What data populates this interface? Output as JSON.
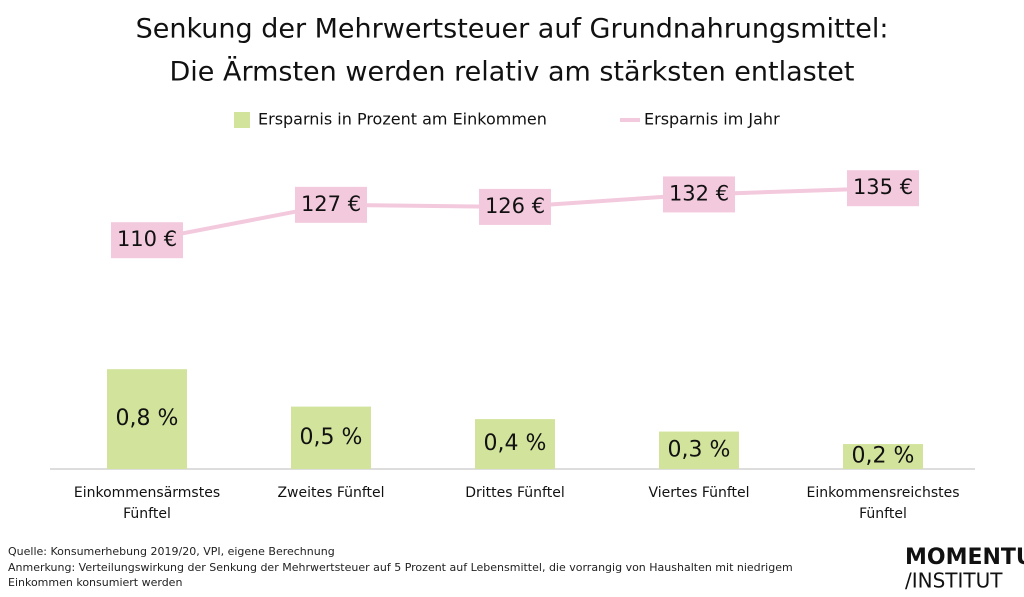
{
  "chart_data": {
    "type": "bar",
    "title": "Senkung der Mehrwertsteuer auf Grundnahrungsmittel:",
    "subtitle": "Die Ärmsten werden relativ am stärksten entlastet",
    "categories": [
      "Einkommensärmstes Fünftel",
      "Zweites Fünftel",
      "Drittes Fünftel",
      "Viertes Fünftel",
      "Einkommensreichstes Fünftel"
    ],
    "series": [
      {
        "name": "Ersparnis in Prozent am Einkommen",
        "type": "bar",
        "color": "#d2e49c",
        "values": [
          0.8,
          0.5,
          0.4,
          0.3,
          0.2
        ],
        "value_labels": [
          "0,8 %",
          "0,5 %",
          "0,4 %",
          "0,3 %",
          "0,2 %"
        ]
      },
      {
        "name": "Ersparnis im Jahr",
        "type": "line",
        "axis": "y2",
        "color": "#f3c9dd",
        "values": [
          110,
          127,
          126,
          132,
          135
        ],
        "value_labels": [
          "110 €",
          "127 €",
          "126 €",
          "132 €",
          "135 €"
        ]
      }
    ],
    "ylim": [
      0,
      2.5
    ],
    "y2lim": [
      0,
      150
    ],
    "legend": "top"
  },
  "footer": {
    "source": "Quelle: Konsumerhebung 2019/20, VPI, eigene Berechnung",
    "note": "Anmerkung: Verteilungswirkung der Senkung der Mehrwertsteuer auf 5 Prozent auf Lebensmittel, die vorrangig von Haushalten mit niedrigem Einkommen konsumiert werden",
    "logo": [
      "MOMENTUM",
      "/INSTITUT"
    ]
  }
}
